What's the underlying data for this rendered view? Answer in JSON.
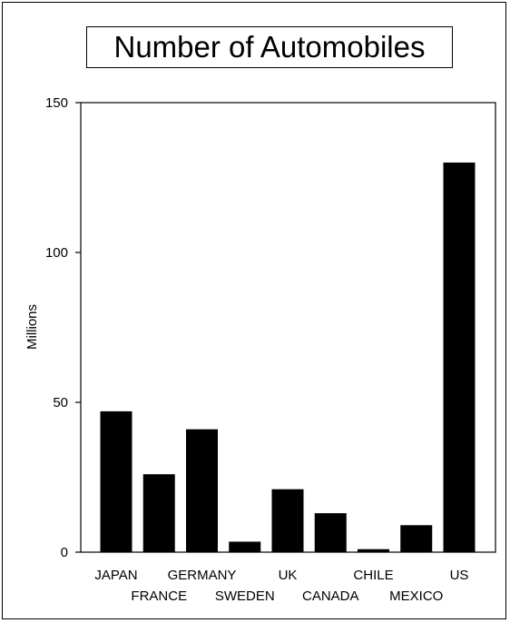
{
  "chart_data": {
    "type": "bar",
    "title": "Number of Automobiles",
    "xlabel": "",
    "ylabel": "Millions",
    "ylim": [
      0,
      150
    ],
    "yticks": [
      0,
      50,
      100,
      150
    ],
    "categories": [
      "JAPAN",
      "FRANCE",
      "GERMANY",
      "SWEDEN",
      "UK",
      "CANADA",
      "CHILE",
      "MEXICO",
      "US"
    ],
    "values": [
      47,
      26,
      41,
      3.5,
      21,
      13,
      1,
      9,
      130
    ],
    "bar_color": "#000000",
    "grid": false
  }
}
